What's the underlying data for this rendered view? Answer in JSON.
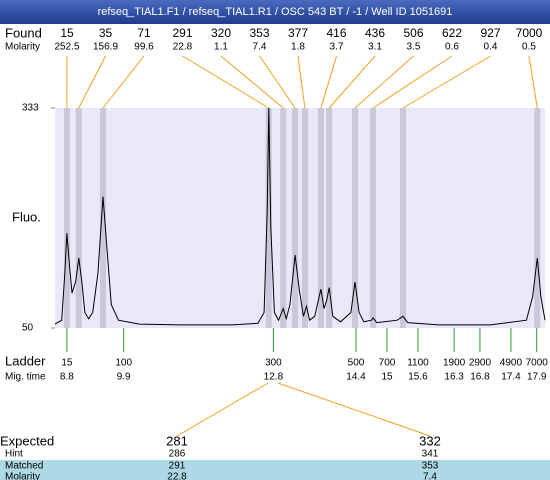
{
  "chart_data": {
    "type": "electropherogram",
    "title": "refseq_TIAL1.F1 / refseq_TIAL1.R1 / OSC 543 BT / -1 / Well ID 1051691",
    "y_label": "Fluo.",
    "ylim": [
      50,
      333
    ],
    "yticks": [
      50,
      333
    ],
    "xlim": [
      8.57,
      18.06
    ],
    "found": {
      "label": "Found",
      "sub_label": "Molarity",
      "sizes": [
        15,
        35,
        71,
        291,
        320,
        353,
        377,
        416,
        436,
        506,
        622,
        927,
        7000
      ],
      "molarity": [
        252.5,
        156.9,
        99.6,
        22.8,
        1.1,
        7.4,
        1.8,
        3.7,
        3.1,
        3.5,
        0.6,
        0.4,
        0.5
      ],
      "x": [
        8.8,
        9.03,
        9.5,
        12.71,
        12.99,
        13.22,
        13.41,
        13.72,
        13.88,
        14.38,
        14.73,
        15.31,
        17.91
      ]
    },
    "ladder": {
      "label": "Ladder",
      "sub_label": "Mig. time",
      "sizes": [
        15,
        100,
        300,
        500,
        700,
        1100,
        1900,
        2900,
        4900,
        7000
      ],
      "times": [
        8.8,
        9.9,
        12.8,
        14.4,
        15,
        15.6,
        16.3,
        16.8,
        17.4,
        17.9
      ]
    },
    "trace": {
      "x": [
        8.57,
        8.7,
        8.76,
        8.8,
        8.85,
        8.9,
        8.97,
        9.03,
        9.09,
        9.15,
        9.22,
        9.3,
        9.4,
        9.5,
        9.58,
        9.66,
        9.8,
        10.2,
        11.0,
        12.0,
        12.5,
        12.62,
        12.68,
        12.71,
        12.75,
        12.82,
        12.9,
        12.99,
        13.05,
        13.12,
        13.22,
        13.3,
        13.38,
        13.44,
        13.5,
        13.6,
        13.72,
        13.78,
        13.83,
        13.88,
        13.95,
        14.1,
        14.3,
        14.38,
        14.46,
        14.55,
        14.7,
        14.73,
        14.8,
        15.2,
        15.31,
        15.4,
        16.0,
        17.0,
        17.7,
        17.82,
        17.91,
        17.98,
        18.06
      ],
      "values": [
        55,
        60,
        120,
        172,
        130,
        95,
        110,
        140,
        110,
        70,
        62,
        70,
        120,
        219,
        150,
        80,
        60,
        55,
        54,
        54,
        56,
        70,
        200,
        333,
        180,
        70,
        60,
        75,
        62,
        80,
        144,
        100,
        65,
        78,
        60,
        65,
        100,
        75,
        85,
        102,
        65,
        58,
        70,
        109,
        70,
        58,
        60,
        63,
        57,
        60,
        65,
        57,
        54,
        54,
        60,
        90,
        140,
        90,
        60
      ]
    },
    "expected_table": {
      "row_labels": [
        "Expected",
        "Hint",
        "Matched",
        "Molarity"
      ],
      "columns": [
        [
          281,
          286,
          291,
          22.8
        ],
        [
          332,
          341,
          353,
          7.4
        ]
      ]
    }
  }
}
